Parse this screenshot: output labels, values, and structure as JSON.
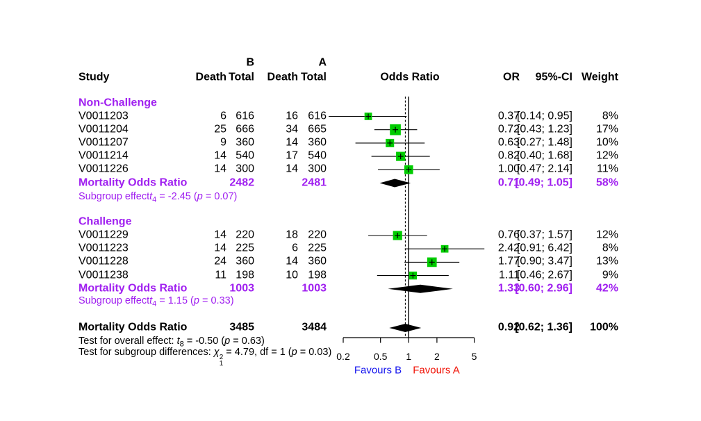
{
  "header": {
    "study": "Study",
    "group_b_label": "B",
    "group_a_label": "A",
    "death_b": "Death",
    "total_b": "Total",
    "death_a": "Death",
    "total_a": "Total",
    "odds_ratio": "Odds Ratio",
    "or": "OR",
    "ci": "95%-CI",
    "weight": "Weight"
  },
  "colors": {
    "summary_purple": "#A020F0",
    "square_green": "#00CC00",
    "favours_b_blue": "#1414EE",
    "favours_a_red": "#F01408",
    "text_black": "#000000"
  },
  "chart_data": {
    "type": "forest",
    "x_axis": {
      "scale": "log",
      "ticks": [
        "0.2",
        "0.5",
        "1",
        "2",
        "5"
      ],
      "tick_values": [
        0.2,
        0.5,
        1,
        2,
        5
      ],
      "ref_line": 1,
      "overall_dashed_line": 0.92
    },
    "favours_left": "Favours B",
    "favours_right": "Favours A",
    "groups": [
      {
        "label": "Non-Challenge",
        "studies": [
          {
            "study": "V0011203",
            "death_b": 6,
            "total_b": 616,
            "death_a": 16,
            "total_a": 616,
            "or": 0.37,
            "ci_low": 0.14,
            "ci_high": 0.95,
            "or_text": "0.37",
            "ci_text": "[0.14; 0.95]",
            "weight": 8,
            "weight_text": "8%"
          },
          {
            "study": "V0011204",
            "death_b": 25,
            "total_b": 666,
            "death_a": 34,
            "total_a": 665,
            "or": 0.72,
            "ci_low": 0.43,
            "ci_high": 1.23,
            "or_text": "0.72",
            "ci_text": "[0.43; 1.23]",
            "weight": 17,
            "weight_text": "17%"
          },
          {
            "study": "V0011207",
            "death_b": 9,
            "total_b": 360,
            "death_a": 14,
            "total_a": 360,
            "or": 0.63,
            "ci_low": 0.27,
            "ci_high": 1.48,
            "or_text": "0.63",
            "ci_text": "[0.27; 1.48]",
            "weight": 10,
            "weight_text": "10%"
          },
          {
            "study": "V0011214",
            "death_b": 14,
            "total_b": 540,
            "death_a": 17,
            "total_a": 540,
            "or": 0.82,
            "ci_low": 0.4,
            "ci_high": 1.68,
            "or_text": "0.82",
            "ci_text": "[0.40; 1.68]",
            "weight": 12,
            "weight_text": "12%"
          },
          {
            "study": "V0011226",
            "death_b": 14,
            "total_b": 300,
            "death_a": 14,
            "total_a": 300,
            "or": 1.0,
            "ci_low": 0.47,
            "ci_high": 2.14,
            "or_text": "1.00",
            "ci_text": "[0.47; 2.14]",
            "weight": 11,
            "weight_text": "11%"
          }
        ],
        "summary": {
          "label": "Mortality Odds Ratio",
          "total_b": 2482,
          "total_a": 2481,
          "or": 0.71,
          "ci_low": 0.49,
          "ci_high": 1.05,
          "or_text": "0.71",
          "ci_text": "[0.49; 1.05]",
          "weight_text": "58%"
        },
        "effect_parts": [
          {
            "t": "Subgroup effect"
          },
          {
            "i": "t"
          },
          {
            "sub": "4"
          },
          {
            "t": " = -2.45 ("
          },
          {
            "i": "p"
          },
          {
            "t": " = 0.07)"
          }
        ]
      },
      {
        "label": "Challenge",
        "studies": [
          {
            "study": "V0011229",
            "death_b": 14,
            "total_b": 220,
            "death_a": 18,
            "total_a": 220,
            "or": 0.76,
            "ci_low": 0.37,
            "ci_high": 1.57,
            "or_text": "0.76",
            "ci_text": "[0.37; 1.57]",
            "weight": 12,
            "weight_text": "12%"
          },
          {
            "study": "V0011223",
            "death_b": 14,
            "total_b": 225,
            "death_a": 6,
            "total_a": 225,
            "or": 2.42,
            "ci_low": 0.91,
            "ci_high": 6.42,
            "or_text": "2.42",
            "ci_text": "[0.91; 6.42]",
            "weight": 8,
            "weight_text": "8%"
          },
          {
            "study": "V0011228",
            "death_b": 24,
            "total_b": 360,
            "death_a": 14,
            "total_a": 360,
            "or": 1.77,
            "ci_low": 0.9,
            "ci_high": 3.47,
            "or_text": "1.77",
            "ci_text": "[0.90; 3.47]",
            "weight": 13,
            "weight_text": "13%"
          },
          {
            "study": "V0011238",
            "death_b": 11,
            "total_b": 198,
            "death_a": 10,
            "total_a": 198,
            "or": 1.11,
            "ci_low": 0.46,
            "ci_high": 2.67,
            "or_text": "1.11",
            "ci_text": "[0.46; 2.67]",
            "weight": 9,
            "weight_text": "9%"
          }
        ],
        "summary": {
          "label": "Mortality Odds Ratio",
          "total_b": 1003,
          "total_a": 1003,
          "or": 1.33,
          "ci_low": 0.6,
          "ci_high": 2.96,
          "or_text": "1.33",
          "ci_text": "[0.60; 2.96]",
          "weight_text": "42%"
        },
        "effect_parts": [
          {
            "t": "Subgroup effect"
          },
          {
            "i": "t"
          },
          {
            "sub": "4"
          },
          {
            "t": " = 1.15 ("
          },
          {
            "i": "p"
          },
          {
            "t": " = 0.33)"
          }
        ]
      }
    ],
    "overall": {
      "label": "Mortality Odds Ratio",
      "total_b": 3485,
      "total_a": 3484,
      "or": 0.92,
      "ci_low": 0.62,
      "ci_high": 1.36,
      "or_text": "0.92",
      "ci_text": "[0.62; 1.36]",
      "weight_text": "100%"
    },
    "tests": [
      {
        "parts": [
          {
            "t": "Test for overall effect: "
          },
          {
            "i": "t"
          },
          {
            "sub": "8"
          },
          {
            "t": " = -0.50 ("
          },
          {
            "i": "p"
          },
          {
            "t": " = 0.63)"
          }
        ]
      },
      {
        "parts": [
          {
            "t": "Test for subgroup differences: "
          },
          {
            "i": "χ"
          },
          {
            "supsub": [
              "2",
              "1"
            ]
          },
          {
            "t": " = 4.79, df = 1 ("
          },
          {
            "i": "p"
          },
          {
            "t": " = 0.03)"
          }
        ]
      }
    ]
  }
}
